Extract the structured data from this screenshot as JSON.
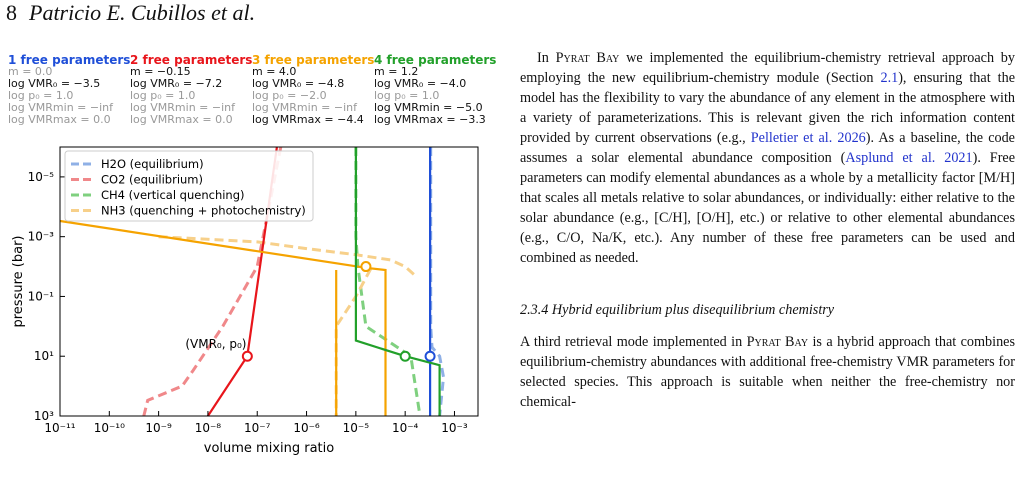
{
  "header": {
    "page": "8",
    "authors": "Patricio E. Cubillos et al."
  },
  "figure": {
    "columns": [
      {
        "title": "1 free parameters",
        "color": "#1f4fd8",
        "lines": [
          {
            "t": "m = 0.0",
            "gray": true
          },
          {
            "t": "log VMR₀ = −3.5",
            "gray": false
          },
          {
            "t": "log p₀ = 1.0",
            "gray": true
          },
          {
            "t": "log VMRmin = −inf",
            "gray": true
          },
          {
            "t": "log VMRmax = 0.0",
            "gray": true
          }
        ]
      },
      {
        "title": "2 free parameters",
        "color": "#e8151b",
        "lines": [
          {
            "t": "m = −0.15",
            "gray": false
          },
          {
            "t": "log VMR₀ = −7.2",
            "gray": false
          },
          {
            "t": "log p₀ = 1.0",
            "gray": true
          },
          {
            "t": "log VMRmin = −inf",
            "gray": true
          },
          {
            "t": "log VMRmax = 0.0",
            "gray": true
          }
        ]
      },
      {
        "title": "3 free parameters",
        "color": "#f5a300",
        "lines": [
          {
            "t": "m = 4.0",
            "gray": false
          },
          {
            "t": "log VMR₀ = −4.8",
            "gray": false
          },
          {
            "t": "log p₀ = −2.0",
            "gray": true
          },
          {
            "t": "log VMRmin = −inf",
            "gray": true
          },
          {
            "t": "log VMRmax = −4.4",
            "gray": false
          }
        ]
      },
      {
        "title": "4 free parameters",
        "color": "#22a02a",
        "lines": [
          {
            "t": "m = 1.2",
            "gray": false
          },
          {
            "t": "log VMR₀ = −4.0",
            "gray": false
          },
          {
            "t": "log p₀ = 1.0",
            "gray": true
          },
          {
            "t": "log VMRmin = −5.0",
            "gray": false
          },
          {
            "t": "log VMRmax = −3.3",
            "gray": false
          }
        ]
      }
    ],
    "annotation": "(VMR₀, p₀)"
  },
  "chart_data": {
    "type": "line",
    "xlabel": "volume mixing ratio",
    "ylabel": "pressure (bar)",
    "xscale": "log",
    "yscale": "log",
    "xlim": [
      1e-11,
      0.003
    ],
    "ylim": [
      1000,
      1e-06
    ],
    "xticks": [
      "10⁻¹¹",
      "10⁻¹⁰",
      "10⁻⁹",
      "10⁻⁸",
      "10⁻⁷",
      "10⁻⁶",
      "10⁻⁵",
      "10⁻⁴",
      "10⁻³"
    ],
    "yticks": [
      "10⁻⁵",
      "10⁻³",
      "10⁻¹",
      "10¹",
      "10³"
    ],
    "legend": {
      "placement": "top-left",
      "entries": [
        {
          "label": "H2O (equilibrium)",
          "color": "#8fb0e6"
        },
        {
          "label": "CO2 (equilibrium)",
          "color": "#f0888a"
        },
        {
          "label": "CH4 (vertical quenching)",
          "color": "#7fd07f"
        },
        {
          "label": "NH3 (quenching + photochemistry)",
          "color": "#f7d08a"
        }
      ]
    },
    "series": [
      {
        "color": "#8fb0e6",
        "dash": true,
        "x": [
          0.00033,
          0.00033,
          0.00035,
          0.0005,
          0.0006,
          0.00055,
          0.0005
        ],
        "y": [
          1e-06,
          1,
          5,
          10,
          50,
          200,
          1000
        ]
      },
      {
        "color": "#f0888a",
        "dash": true,
        "x": [
          3e-07,
          1e-07,
          2e-08,
          5e-09,
          3e-09,
          6e-10,
          5e-10
        ],
        "y": [
          1e-06,
          0.01,
          1,
          30,
          100,
          300,
          1000
        ]
      },
      {
        "color": "#7fd07f",
        "dash": true,
        "x": [
          1e-05,
          1e-05,
          1.1e-05,
          1.6e-05,
          0.00013,
          0.0002
        ],
        "y": [
          1e-06,
          0.001,
          0.01,
          1,
          10,
          1000
        ]
      },
      {
        "color": "#f7d08a",
        "dash": true,
        "x": [
          1e-09,
          1e-07,
          1e-06,
          1e-05,
          5e-05,
          0.0001,
          0.00016
        ],
        "y": [
          0.001,
          0.0015,
          0.0025,
          0.004,
          0.006,
          0.01,
          0.02
        ]
      },
      {
        "color": "#f7d08a",
        "dash": true,
        "x": [
          2e-05,
          1e-05,
          4e-06,
          4e-06
        ],
        "y": [
          0.012,
          0.1,
          1,
          1000
        ]
      },
      {
        "color": "#1f4fd8",
        "dash": false,
        "x": [
          0.00032,
          0.00032
        ],
        "y": [
          1e-06,
          1000
        ]
      },
      {
        "color": "#e8151b",
        "dash": false,
        "x": [
          2.5e-07,
          6.3e-08,
          1e-08
        ],
        "y": [
          1e-06,
          10,
          1000
        ]
      },
      {
        "color": "#f5a300",
        "dash": false,
        "x": [
          1e-11,
          1.6e-05,
          4e-05,
          4e-05
        ],
        "y": [
          0.0003,
          0.011,
          0.013,
          1000
        ]
      },
      {
        "color": "#f5a300",
        "dash": false,
        "x": [
          4e-06,
          4e-06
        ],
        "y": [
          0.013,
          1000
        ]
      },
      {
        "color": "#22a02a",
        "dash": false,
        "x": [
          1e-05,
          1e-05,
          0.0001,
          0.0005,
          0.0005
        ],
        "y": [
          1e-06,
          3,
          10,
          20,
          1000
        ]
      }
    ],
    "markers": [
      {
        "color": "#f5a300",
        "x": 1.6e-05,
        "y": 0.01
      },
      {
        "color": "#e8151b",
        "x": 6.3e-08,
        "y": 10
      },
      {
        "color": "#22a02a",
        "x": 0.0001,
        "y": 10
      },
      {
        "color": "#1f4fd8",
        "x": 0.00032,
        "y": 10
      }
    ]
  },
  "text": {
    "p1_a": "In ",
    "p1_b": "Pyrat Bay",
    "p1_c": " we implemented the equilibrium-chemistry retrieval approach by employing the new equilibrium-chemistry module (Section ",
    "p1_d": "2.1",
    "p1_e": "), ensuring that the model has the flexibility to vary the abundance of any element in the atmosphere with a variety of parameterizations. This is relevant given the rich information content provided by current observations (e.g., ",
    "p1_f": "Pelletier et al. 2026",
    "p1_g": "). As a baseline, the code assumes a solar elemental abundance composition (",
    "p1_h": "Asplund et al. 2021",
    "p1_i": "). Free parameters can modify elemental abundances as a whole by a metallicity factor [M/H] that scales all metals relative to solar abundances, or individually: either relative to the solar abundance (e.g., [C/H], [O/H], etc.) or relative to other elemental abundances (e.g., C/O, Na/K, etc.). Any number of these free parameters can be used and combined as needed.",
    "section": "2.3.4 Hybrid equilibrium plus disequilibrium chemistry",
    "p2_a": "A third retrieval mode implemented in ",
    "p2_b": "Pyrat Bay",
    "p2_c": " is a hybrid approach that combines equilibrium-chemistry abundances with additional free-chemistry VMR parameters for selected species. This approach is suitable when neither the free-chemistry nor chemical-"
  }
}
